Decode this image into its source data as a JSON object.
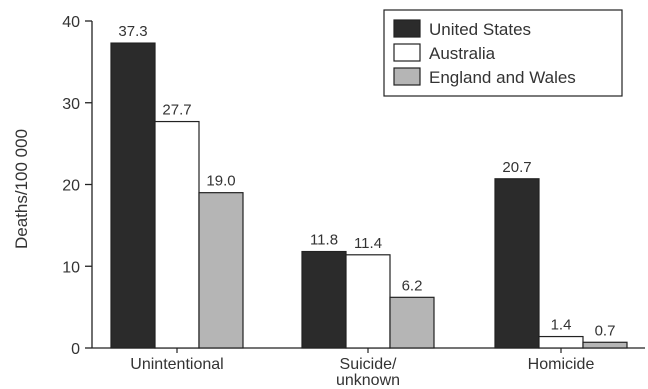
{
  "chart_data": {
    "type": "bar",
    "ylabel": "Deaths/100 000",
    "ylim": [
      0,
      40
    ],
    "yticks": [
      0,
      10,
      20,
      30,
      40
    ],
    "categories": [
      "Unintentional",
      "Suicide/\nunknown",
      "Homicide"
    ],
    "series": [
      {
        "name": "United States",
        "values": [
          37.3,
          11.8,
          20.7
        ],
        "value_labels": [
          "37.3",
          "11.8",
          "20.7"
        ],
        "color": "#2b2b2b"
      },
      {
        "name": "Australia",
        "values": [
          27.7,
          11.4,
          1.4
        ],
        "value_labels": [
          "27.7",
          "11.4",
          "1.4"
        ],
        "color": "#ffffff"
      },
      {
        "name": "England and Wales",
        "values": [
          19.0,
          6.2,
          0.7
        ],
        "value_labels": [
          "19.0",
          "6.2",
          "0.7"
        ],
        "color": "#b5b5b5"
      }
    ],
    "grid": false,
    "legend": "top-right"
  }
}
